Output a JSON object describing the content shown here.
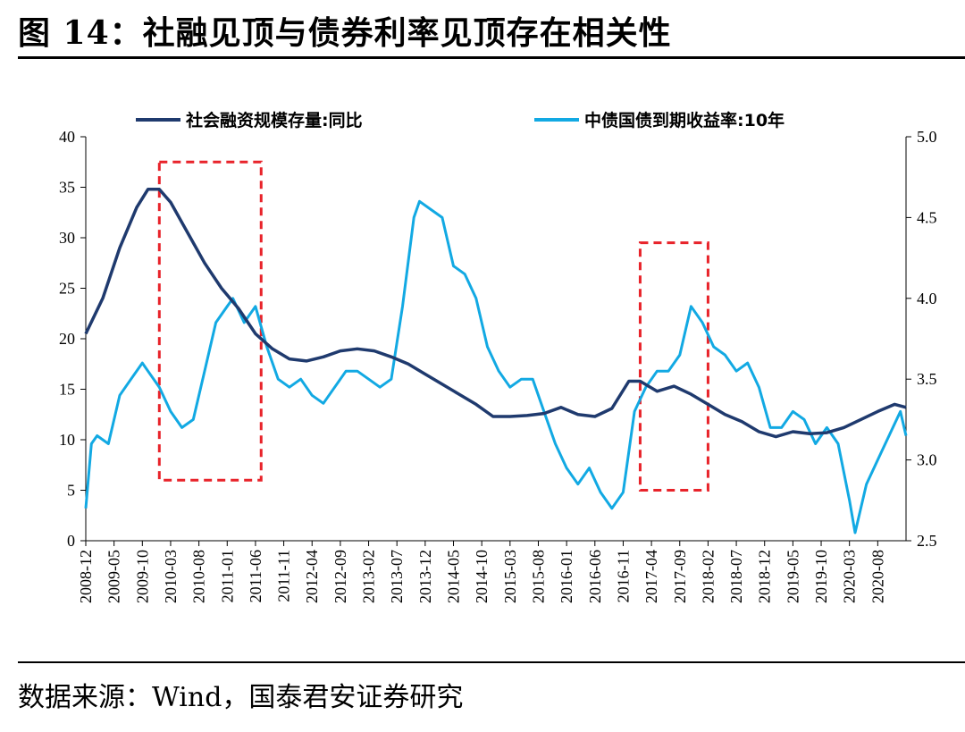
{
  "figure": {
    "title": "图 14：社融见顶与债券利率见顶存在相关性",
    "source": "数据来源：Wind，国泰君安证券研究"
  },
  "chart_data": {
    "type": "line",
    "title": "",
    "legend_position": "top",
    "grid": false,
    "x_ticks": [
      "2008-12",
      "2009-05",
      "2009-10",
      "2010-03",
      "2010-08",
      "2011-01",
      "2011-06",
      "2011-11",
      "2012-04",
      "2012-09",
      "2013-02",
      "2013-07",
      "2013-12",
      "2014-05",
      "2014-10",
      "2015-03",
      "2015-08",
      "2016-01",
      "2016-06",
      "2016-11",
      "2017-04",
      "2017-09",
      "2018-02",
      "2018-07",
      "2018-12",
      "2019-05",
      "2019-10",
      "2020-03",
      "2020-08"
    ],
    "left_axis": {
      "range": [
        0,
        40
      ],
      "ticks": [
        "0",
        "5",
        "10",
        "15",
        "20",
        "25",
        "30",
        "35",
        "40"
      ]
    },
    "right_axis": {
      "range": [
        2.5,
        5.0
      ],
      "ticks": [
        "2.5",
        "3.0",
        "3.5",
        "4.0",
        "4.5",
        "5.0"
      ]
    },
    "series": [
      {
        "name": "社会融资规模存量:同比",
        "axis": "left",
        "color": "#1f3a6e",
        "x": [
          "2008-12",
          "2009-03",
          "2009-06",
          "2009-09",
          "2009-11",
          "2010-01",
          "2010-03",
          "2010-06",
          "2010-09",
          "2010-12",
          "2011-03",
          "2011-06",
          "2011-09",
          "2011-12",
          "2012-03",
          "2012-06",
          "2012-09",
          "2012-12",
          "2013-03",
          "2013-06",
          "2013-09",
          "2013-12",
          "2014-03",
          "2014-06",
          "2014-09",
          "2014-12",
          "2015-03",
          "2015-06",
          "2015-09",
          "2015-12",
          "2016-03",
          "2016-06",
          "2016-09",
          "2016-12",
          "2017-02",
          "2017-05",
          "2017-08",
          "2017-11",
          "2018-02",
          "2018-05",
          "2018-08",
          "2018-11",
          "2019-02",
          "2019-05",
          "2019-08",
          "2019-11",
          "2020-02",
          "2020-05",
          "2020-08",
          "2020-11",
          "2021-01"
        ],
        "values": [
          20.5,
          24,
          29,
          33,
          34.8,
          34.8,
          33.5,
          30.5,
          27.5,
          25,
          23,
          20.5,
          19,
          18,
          17.8,
          18.2,
          18.8,
          19,
          18.8,
          18.2,
          17.5,
          16.5,
          15.5,
          14.5,
          13.5,
          12.3,
          12.3,
          12.4,
          12.6,
          13.2,
          12.5,
          12.3,
          13.1,
          15.8,
          15.8,
          14.8,
          15.3,
          14.5,
          13.5,
          12.5,
          11.8,
          10.8,
          10.3,
          10.8,
          10.6,
          10.7,
          11.2,
          12.0,
          12.8,
          13.5,
          13.2
        ]
      },
      {
        "name": "中债国债到期收益率:10年",
        "axis": "right",
        "color": "#12a9e3",
        "x": [
          "2008-12",
          "2009-01",
          "2009-02",
          "2009-04",
          "2009-06",
          "2009-08",
          "2009-10",
          "2009-11",
          "2010-01",
          "2010-03",
          "2010-05",
          "2010-07",
          "2010-09",
          "2010-11",
          "2010-12",
          "2011-02",
          "2011-04",
          "2011-06",
          "2011-08",
          "2011-10",
          "2011-12",
          "2012-02",
          "2012-04",
          "2012-06",
          "2012-08",
          "2012-10",
          "2012-12",
          "2013-02",
          "2013-04",
          "2013-06",
          "2013-08",
          "2013-10",
          "2013-11",
          "2014-01",
          "2014-03",
          "2014-05",
          "2014-07",
          "2014-09",
          "2014-11",
          "2015-01",
          "2015-03",
          "2015-05",
          "2015-07",
          "2015-09",
          "2015-11",
          "2016-01",
          "2016-03",
          "2016-05",
          "2016-07",
          "2016-09",
          "2016-11",
          "2017-01",
          "2017-03",
          "2017-05",
          "2017-07",
          "2017-09",
          "2017-11",
          "2018-01",
          "2018-03",
          "2018-05",
          "2018-07",
          "2018-09",
          "2018-11",
          "2019-01",
          "2019-03",
          "2019-05",
          "2019-07",
          "2019-09",
          "2019-11",
          "2020-01",
          "2020-03",
          "2020-04",
          "2020-06",
          "2020-08",
          "2020-10",
          "2020-12",
          "2021-01"
        ],
        "values": [
          2.7,
          3.1,
          3.15,
          3.1,
          3.4,
          3.5,
          3.6,
          3.55,
          3.45,
          3.3,
          3.2,
          3.25,
          3.55,
          3.85,
          3.9,
          4.0,
          3.85,
          3.95,
          3.7,
          3.5,
          3.45,
          3.5,
          3.4,
          3.35,
          3.45,
          3.55,
          3.55,
          3.5,
          3.45,
          3.5,
          3.95,
          4.5,
          4.6,
          4.55,
          4.5,
          4.2,
          4.15,
          4.0,
          3.7,
          3.55,
          3.45,
          3.5,
          3.5,
          3.3,
          3.1,
          2.95,
          2.85,
          2.95,
          2.8,
          2.7,
          2.8,
          3.3,
          3.45,
          3.55,
          3.55,
          3.65,
          3.95,
          3.85,
          3.7,
          3.65,
          3.55,
          3.6,
          3.45,
          3.2,
          3.2,
          3.3,
          3.25,
          3.1,
          3.2,
          3.1,
          2.75,
          2.55,
          2.85,
          3.0,
          3.15,
          3.3,
          3.15
        ]
      }
    ],
    "annotations": [
      {
        "type": "dashed-rect",
        "color": "#e8232a",
        "x_from": "2010-01",
        "x_to": "2011-07",
        "y_from": 6,
        "y_to": 37.5
      },
      {
        "type": "dashed-rect",
        "color": "#e8232a",
        "x_from": "2017-02",
        "x_to": "2018-02",
        "y_from": 5,
        "y_to": 29.5
      }
    ]
  }
}
